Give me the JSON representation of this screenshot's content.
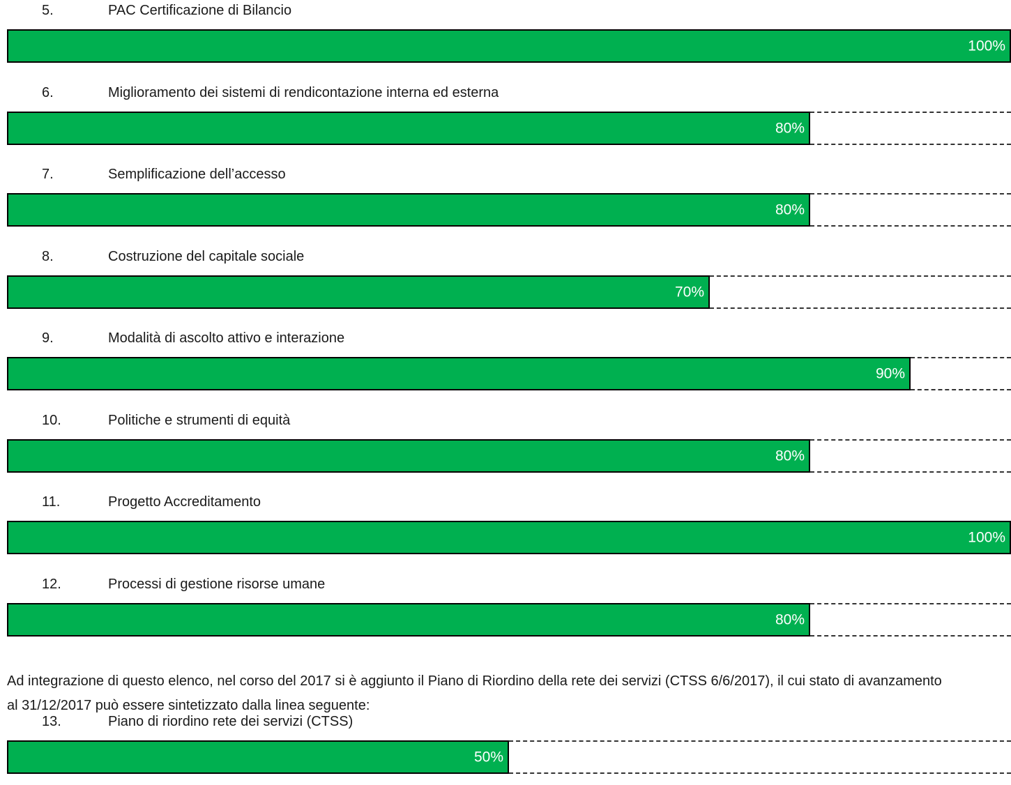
{
  "colors": {
    "bar_fill": "#00b050",
    "bar_border": "#000000",
    "bar_text": "#ffffff"
  },
  "items": [
    {
      "number": "5.",
      "title": "PAC Certificazione di Bilancio",
      "percent": 100,
      "label": "100%"
    },
    {
      "number": "6.",
      "title": "Miglioramento dei sistemi di rendicontazione interna ed esterna",
      "percent": 80,
      "label": "80%"
    },
    {
      "number": "7.",
      "title": "Semplificazione dell’accesso",
      "percent": 80,
      "label": "80%"
    },
    {
      "number": "8.",
      "title": "Costruzione del capitale sociale",
      "percent": 70,
      "label": "70%"
    },
    {
      "number": "9.",
      "title": "Modalità di ascolto attivo e interazione",
      "percent": 90,
      "label": "90%"
    },
    {
      "number": "10.",
      "title": "Politiche e strumenti di equità",
      "percent": 80,
      "label": "80%"
    },
    {
      "number": "11.",
      "title": "Progetto Accreditamento",
      "percent": 100,
      "label": "100%"
    },
    {
      "number": "12.",
      "title": "Processi di gestione risorse umane",
      "percent": 80,
      "label": "80%"
    }
  ],
  "paragraph": "Ad integrazione di questo elenco, nel corso del 2017 si è aggiunto il Piano di Riordino della rete dei servizi (CTSS 6/6/2017), il cui stato di avanzamento al 31/12/2017 può essere sintetizzato dalla linea seguente:",
  "last_item": {
    "number": "13.",
    "title": "Piano di riordino rete dei servizi (CTSS)",
    "percent": 50,
    "label": "50%"
  }
}
